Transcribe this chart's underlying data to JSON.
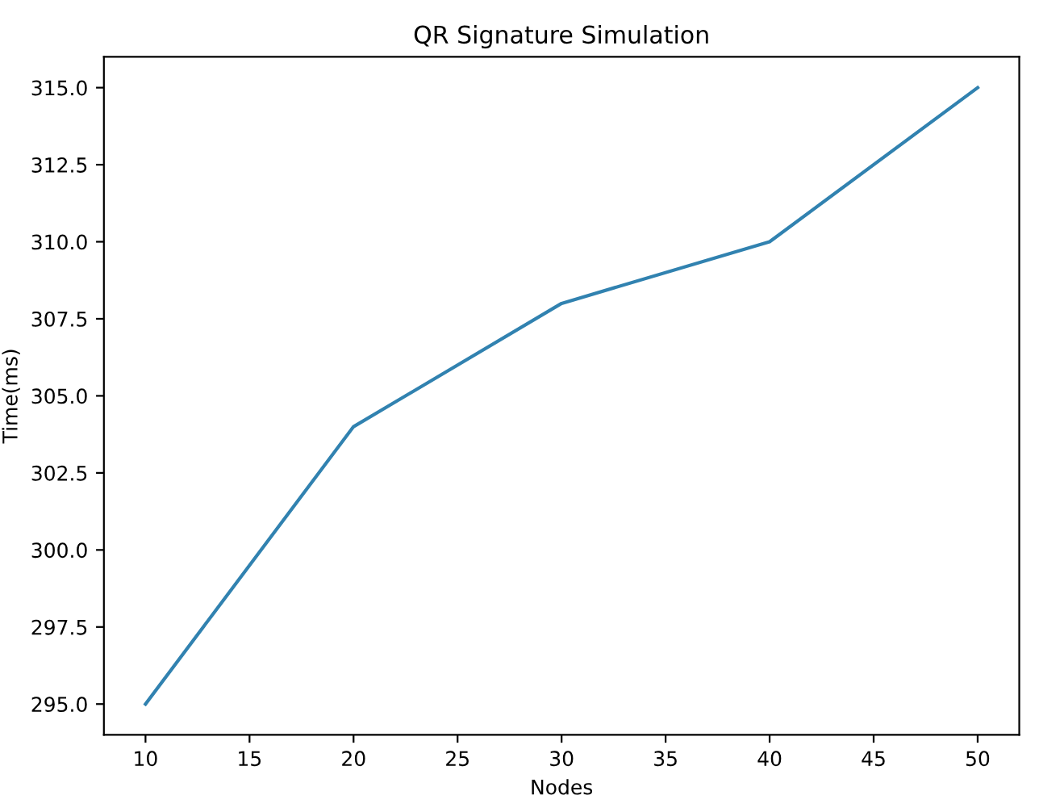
{
  "chart_data": {
    "type": "line",
    "title": "QR Signature Simulation",
    "xlabel": "Nodes",
    "ylabel": "Time(ms)",
    "x": [
      10,
      20,
      30,
      40,
      50
    ],
    "series": [
      {
        "color": "#3182b0",
        "values": [
          295,
          304,
          308,
          310,
          315
        ]
      }
    ],
    "xlim": [
      8,
      52
    ],
    "ylim": [
      294,
      316
    ],
    "xticks": [
      10,
      15,
      20,
      25,
      30,
      35,
      40,
      45,
      50
    ],
    "yticks": [
      {
        "value": 295,
        "label": "295.0"
      },
      {
        "value": 297.5,
        "label": "297.5"
      },
      {
        "value": 300,
        "label": "300.0"
      },
      {
        "value": 302.5,
        "label": "302.5"
      },
      {
        "value": 305,
        "label": "305.0"
      },
      {
        "value": 307.5,
        "label": "307.5"
      },
      {
        "value": 310,
        "label": "310.0"
      },
      {
        "value": 312.5,
        "label": "312.5"
      },
      {
        "value": 315,
        "label": "315.0"
      }
    ],
    "grid": false,
    "legend": false
  }
}
